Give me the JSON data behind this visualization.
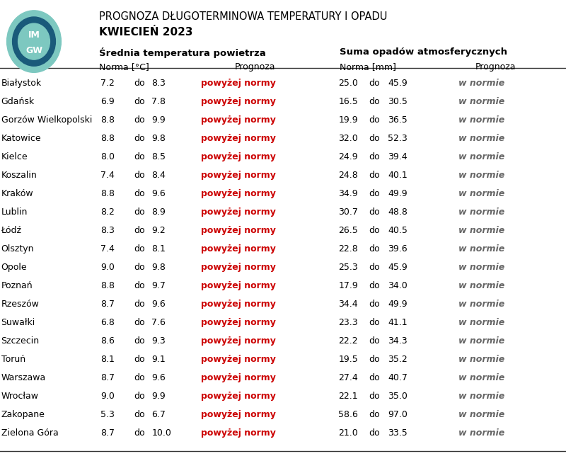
{
  "title_line1": "PROGNOZA DŁUGOTERMINOWA TEMPERATURY I OPADU",
  "title_line2": "KWIECIEŃ 2023",
  "col_header1": "Średnia temperatura powietrza",
  "col_header2": "Suma opadów atmosferycznych",
  "sub_header_norma_temp": "Norma [°C]",
  "sub_header_prognoza": "Prognoza",
  "sub_header_norma_mm": "Norma [mm]",
  "sub_header_prognoza2": "Prognoza",
  "cities": [
    "Białystok",
    "Gdańsk",
    "Gorzów Wielkopolski",
    "Katowice",
    "Kielce",
    "Koszalin",
    "Kraków",
    "Lublin",
    "Łódź",
    "Olsztyn",
    "Opole",
    "Poznań",
    "Rzeszów",
    "Suwałki",
    "Szczecin",
    "Toruń",
    "Warszawa",
    "Wrocław",
    "Zakopane",
    "Zielona Góra"
  ],
  "temp_norma_low": [
    7.2,
    6.9,
    8.8,
    8.8,
    8.0,
    7.4,
    8.8,
    8.2,
    8.3,
    7.4,
    9.0,
    8.8,
    8.7,
    6.8,
    8.6,
    8.1,
    8.7,
    9.0,
    5.3,
    8.7
  ],
  "temp_norma_high": [
    8.3,
    7.8,
    9.9,
    9.8,
    8.5,
    8.4,
    9.6,
    8.9,
    9.2,
    8.1,
    9.8,
    9.7,
    9.6,
    7.6,
    9.3,
    9.1,
    9.6,
    9.9,
    6.7,
    10.0
  ],
  "temp_prognoza": [
    "powyżej normy",
    "powyżej normy",
    "powyżej normy",
    "powyżej normy",
    "powyżej normy",
    "powyżej normy",
    "powyżej normy",
    "powyżej normy",
    "powyżej normy",
    "powyżej normy",
    "powyżej normy",
    "powyżej normy",
    "powyżej normy",
    "powyżej normy",
    "powyżej normy",
    "powyżej normy",
    "powyżej normy",
    "powyżej normy",
    "powyżej normy",
    "powyżej normy"
  ],
  "precip_norma_low": [
    25.0,
    16.5,
    19.9,
    32.0,
    24.9,
    24.8,
    34.9,
    30.7,
    26.5,
    22.8,
    25.3,
    17.9,
    34.4,
    23.3,
    22.2,
    19.5,
    27.4,
    22.1,
    58.6,
    21.0
  ],
  "precip_norma_high": [
    45.9,
    30.5,
    36.5,
    52.3,
    39.4,
    40.1,
    49.9,
    48.8,
    40.5,
    39.6,
    45.9,
    34.0,
    49.9,
    41.1,
    34.3,
    35.2,
    40.7,
    35.0,
    97.0,
    33.5
  ],
  "precip_prognoza": [
    "w normie",
    "w normie",
    "w normie",
    "w normie",
    "w normie",
    "w normie",
    "w normie",
    "w normie",
    "w normie",
    "w normie",
    "w normie",
    "w normie",
    "w normie",
    "w normie",
    "w normie",
    "w normie",
    "w normie",
    "w normie",
    "w normie",
    "w normie"
  ],
  "red_color": "#cc0000",
  "gray_color": "#666666",
  "black_color": "#000000",
  "bg_color": "#ffffff",
  "line_color": "#333333"
}
